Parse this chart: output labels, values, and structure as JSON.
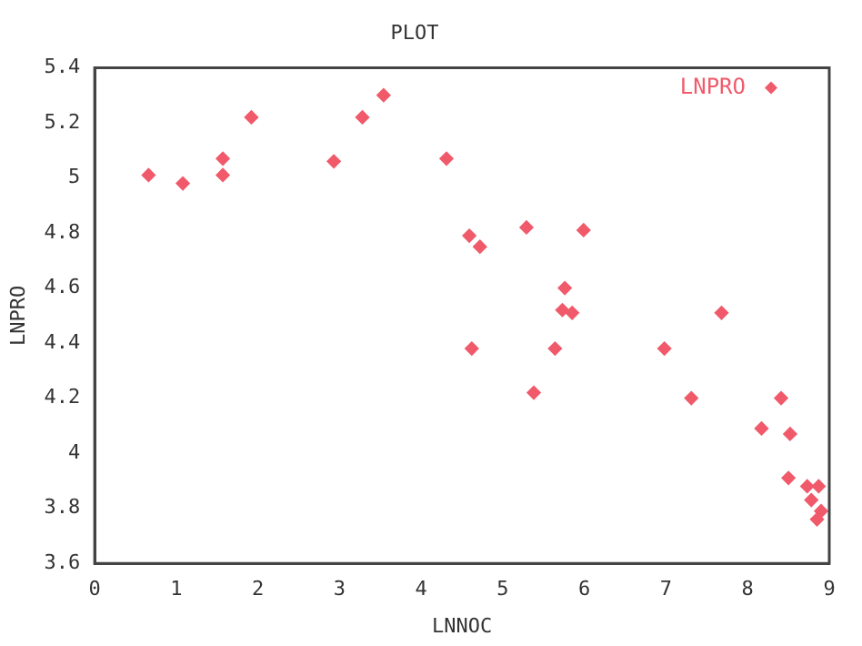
{
  "chart_data": {
    "type": "scatter",
    "title": "PLOT",
    "xlabel": "LNNOC",
    "ylabel": "LNPRO",
    "xlim": [
      0,
      9
    ],
    "xticks": [
      0,
      1,
      2,
      3,
      4,
      5,
      6,
      7,
      8,
      9
    ],
    "ylim": [
      3.6,
      5.4
    ],
    "yticks": [
      3.6,
      3.8,
      4,
      4.2,
      4.4,
      4.6,
      4.8,
      5,
      5.2,
      5.4
    ],
    "grid": false,
    "legend": "top right",
    "marker": "diamond",
    "series": [
      {
        "name": "LNPRO",
        "color": "#f05a6a",
        "x": [
          0.66,
          1.08,
          1.57,
          1.57,
          1.92,
          2.93,
          3.28,
          3.54,
          4.31,
          4.59,
          4.72,
          4.62,
          5.29,
          5.38,
          5.64,
          5.76,
          5.73,
          5.85,
          5.99,
          6.98,
          7.31,
          7.68,
          8.17,
          8.41,
          8.52,
          8.5,
          8.73,
          8.78,
          8.85,
          8.9,
          8.87
        ],
        "values": [
          5.01,
          4.98,
          5.07,
          5.01,
          5.22,
          5.06,
          5.22,
          5.3,
          5.07,
          4.79,
          4.75,
          4.38,
          4.82,
          4.22,
          4.38,
          4.6,
          4.52,
          4.51,
          4.81,
          4.38,
          4.2,
          4.51,
          4.09,
          4.2,
          4.07,
          3.91,
          3.88,
          3.83,
          3.76,
          3.79,
          3.88
        ]
      }
    ]
  }
}
